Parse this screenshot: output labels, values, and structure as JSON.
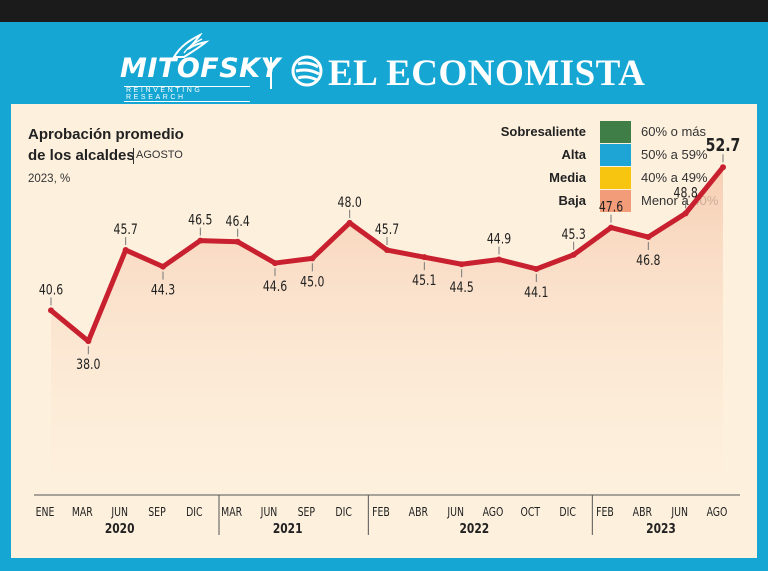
{
  "header": {
    "brand_left": "MITOFSKY",
    "brand_left_tagline": "REINVENTING RESEARCH",
    "brand_right": "EL ECONOMISTA"
  },
  "colors": {
    "frame": "#16a6d3",
    "panel": "#fdf0dd",
    "line": "#c8202f",
    "area": "#f6c9ae"
  },
  "chart_data": {
    "type": "area",
    "title_line1": "Aprobación promedio",
    "title_line2": "de los alcaldes",
    "subtitle": "AGOSTO",
    "unit": "2023, %",
    "legend": [
      {
        "label": "Sobresaliente",
        "range": "60% o más",
        "color": "#3f7f47"
      },
      {
        "label": "Alta",
        "range": "50% a 59%",
        "color": "#1fa4d6"
      },
      {
        "label": "Media",
        "range": "40% a 49%",
        "color": "#f7c40f"
      },
      {
        "label": "Baja",
        "range": "Menor a 40%",
        "color": "#f39c79"
      }
    ],
    "categories": [
      "ENE",
      "MAR",
      "JUN",
      "SEP",
      "DIC",
      "MAR",
      "JUN",
      "SEP",
      "DIC",
      "FEB",
      "ABR",
      "JUN",
      "AGO",
      "OCT",
      "DIC",
      "FEB",
      "ABR",
      "JUN",
      "AGO"
    ],
    "labels": [
      "40.6",
      "38.0",
      "45.7",
      "44.3",
      "46.5",
      "46.4",
      "44.6",
      "45.0",
      "48.0",
      "45.7",
      "45.1",
      "44.5",
      "44.9",
      "44.1",
      "45.3",
      "47.6",
      "46.8",
      "48.8",
      "52.7"
    ],
    "values": [
      40.6,
      38.0,
      45.7,
      44.3,
      46.5,
      46.4,
      44.6,
      45.0,
      48.0,
      45.7,
      45.1,
      44.5,
      44.9,
      44.1,
      45.3,
      47.6,
      46.8,
      48.8,
      52.7
    ],
    "label_position": [
      "above",
      "below",
      "above",
      "below",
      "above",
      "above",
      "below",
      "below",
      "above",
      "above",
      "below",
      "below",
      "above",
      "below",
      "above",
      "above",
      "below",
      "above",
      "above"
    ],
    "years": [
      {
        "label": "2020",
        "start": 0,
        "end": 4
      },
      {
        "label": "2021",
        "start": 5,
        "end": 8
      },
      {
        "label": "2022",
        "start": 9,
        "end": 14
      },
      {
        "label": "2023",
        "start": 15,
        "end": 18
      }
    ],
    "ylim": [
      25,
      55
    ]
  }
}
